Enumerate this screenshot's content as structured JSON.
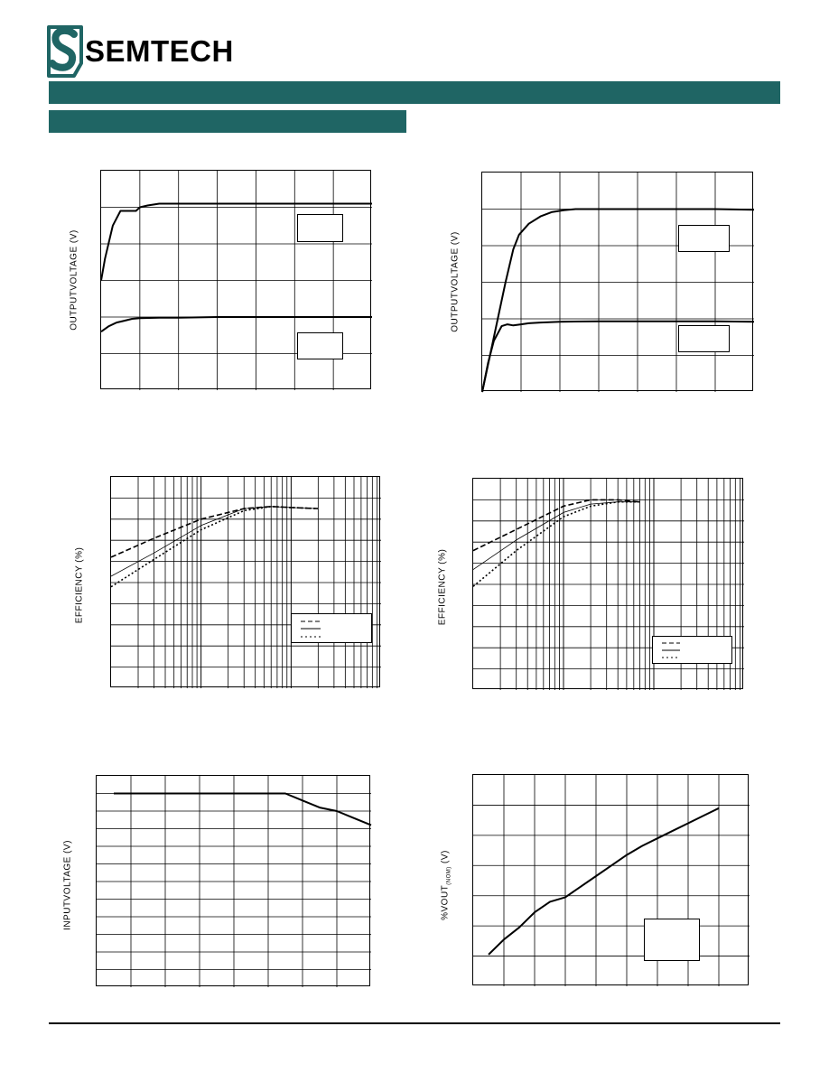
{
  "brand": {
    "name": "SEMTECH",
    "color": "#1f6564",
    "logo_icon": "semtech-s-logo-icon"
  },
  "chart_data": [
    {
      "id": "output-voltage-startup-left",
      "type": "line",
      "ylabel": "OUTPUTVOLTAGE (V)",
      "xlim": [
        0,
        7
      ],
      "ylim": [
        0,
        6
      ],
      "grid": true,
      "series": [
        {
          "x": [
            0,
            0.1,
            0.3,
            0.5,
            0.6,
            0.9,
            1.0,
            1.2,
            1.5,
            2,
            3,
            4,
            5,
            6,
            7
          ],
          "y": [
            3.0,
            3.6,
            4.5,
            4.9,
            4.9,
            4.9,
            5.0,
            5.05,
            5.1,
            5.1,
            5.1,
            5.1,
            5.1,
            5.1,
            5.1
          ]
        },
        {
          "x": [
            0,
            0.2,
            0.4,
            0.6,
            0.8,
            1.0,
            1.5,
            2,
            3,
            4,
            5,
            6,
            7
          ],
          "y": [
            1.6,
            1.75,
            1.85,
            1.9,
            1.95,
            1.97,
            1.98,
            1.98,
            2.0,
            2.0,
            2.0,
            2.0,
            2.0
          ]
        }
      ]
    },
    {
      "id": "output-voltage-startup-right",
      "type": "line",
      "ylabel": "OUTPUTVOLTAGE (V)",
      "xlim": [
        0,
        7
      ],
      "ylim": [
        0,
        6
      ],
      "grid": true,
      "series": [
        {
          "x": [
            0,
            0.2,
            0.4,
            0.6,
            0.8,
            0.95,
            1.2,
            1.5,
            1.8,
            2.1,
            2.4,
            3,
            4,
            5,
            6,
            7
          ],
          "y": [
            0,
            1.0,
            2.0,
            3.0,
            3.9,
            4.3,
            4.6,
            4.8,
            4.92,
            4.97,
            5.0,
            5.0,
            5.0,
            5.0,
            5.0,
            4.98
          ]
        },
        {
          "x": [
            0,
            0.15,
            0.3,
            0.5,
            0.65,
            0.8,
            1.0,
            1.2,
            1.5,
            2,
            3,
            4,
            5,
            6,
            7
          ],
          "y": [
            0,
            0.8,
            1.4,
            1.8,
            1.85,
            1.82,
            1.85,
            1.88,
            1.9,
            1.92,
            1.93,
            1.93,
            1.93,
            1.93,
            1.92
          ]
        }
      ]
    },
    {
      "id": "efficiency-left",
      "type": "line",
      "ylabel": "EFFICIENCY (%)",
      "xscale": "log",
      "xlim": [
        1,
        1000
      ],
      "ylim": [
        0,
        100
      ],
      "grid": true,
      "legend_location": "lower-right",
      "series": [
        {
          "style": "dashed",
          "x": [
            1,
            3,
            10,
            30,
            60,
            100,
            200
          ],
          "y": [
            62,
            71,
            80,
            85,
            86,
            85.5,
            85
          ]
        },
        {
          "style": "solid",
          "x": [
            1,
            3,
            10,
            30,
            60,
            100,
            200
          ],
          "y": [
            53,
            64,
            77,
            85,
            86,
            85.5,
            85
          ]
        },
        {
          "style": "dotted",
          "x": [
            1,
            3,
            10,
            30,
            60,
            100,
            200
          ],
          "y": [
            48,
            61,
            75,
            84,
            86,
            85.5,
            85
          ]
        }
      ]
    },
    {
      "id": "efficiency-right",
      "type": "line",
      "ylabel": "EFFICIENCY (%)",
      "xscale": "log",
      "xlim": [
        1,
        1000
      ],
      "ylim": [
        0,
        100
      ],
      "grid": true,
      "legend_location": "lower-right",
      "series": [
        {
          "style": "dashed",
          "x": [
            1,
            3,
            10,
            20,
            40,
            70
          ],
          "y": [
            66,
            76,
            87,
            90,
            90,
            89
          ]
        },
        {
          "style": "solid",
          "x": [
            1,
            3,
            10,
            20,
            40,
            70
          ],
          "y": [
            57,
            71,
            84,
            88,
            89,
            89
          ]
        },
        {
          "style": "dotted",
          "x": [
            1,
            3,
            10,
            20,
            40,
            70
          ],
          "y": [
            49,
            66,
            82,
            87,
            89,
            89
          ]
        }
      ]
    },
    {
      "id": "input-voltage",
      "type": "line",
      "ylabel": "INPUTVOLTAGE (V)",
      "xlim": [
        0,
        8
      ],
      "ylim": [
        0,
        12
      ],
      "grid": true,
      "series": [
        {
          "x": [
            0.5,
            1,
            2,
            3,
            4,
            5,
            5.5,
            6,
            6.5,
            7,
            7.5,
            8
          ],
          "y": [
            11.0,
            11.0,
            11.0,
            11.0,
            11.0,
            11.0,
            11.0,
            10.6,
            10.2,
            10.0,
            9.6,
            9.2
          ]
        }
      ]
    },
    {
      "id": "vout-percent-nominal",
      "type": "line",
      "ylabel": "%VOUT(NOM) (V)",
      "xlim": [
        0,
        9
      ],
      "ylim": [
        0,
        7
      ],
      "grid": true,
      "series": [
        {
          "x": [
            0.5,
            1,
            1.5,
            2,
            2.5,
            3,
            3.5,
            4,
            4.5,
            5,
            5.5,
            6,
            6.5,
            7,
            7.5,
            8
          ],
          "y": [
            1.05,
            1.55,
            1.95,
            2.45,
            2.8,
            2.95,
            3.3,
            3.65,
            4.0,
            4.35,
            4.65,
            4.9,
            5.15,
            5.4,
            5.65,
            5.9
          ]
        }
      ]
    }
  ]
}
